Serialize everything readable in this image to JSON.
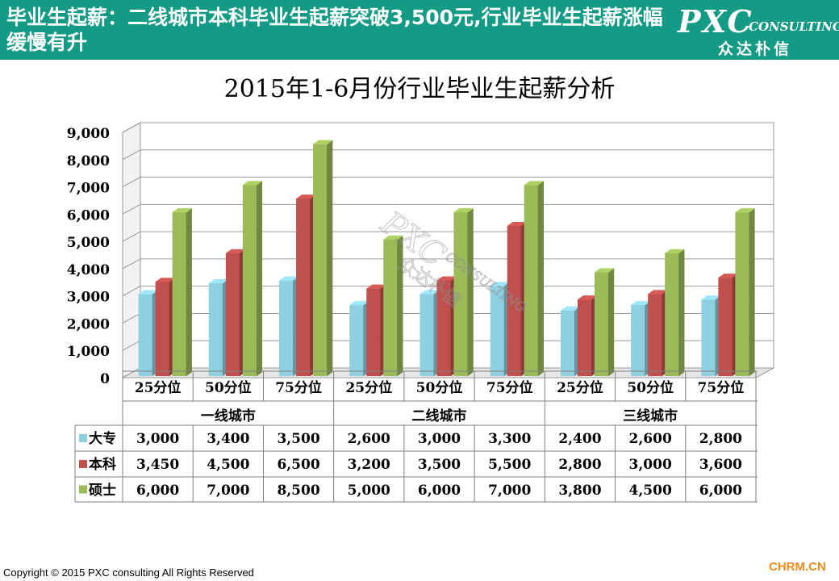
{
  "header": {
    "title": "毕业生起薪：二线城市本科毕业生起薪突破3,500元,行业毕业生起薪涨幅缓慢有升",
    "logo_main": "PXC",
    "logo_sub": "CONSULTING",
    "logo_cn": "众达朴信",
    "color": "#139b85"
  },
  "watermark": {
    "main": "PXC",
    "sub": "CONSULTING",
    "cn": "众达朴信"
  },
  "footer": {
    "copyright": "Copyright © 2015  PXC consulting All Rights Reserved",
    "site": "CHRM.CN"
  },
  "chart_data": {
    "type": "bar",
    "title": "2015年1-6月份行业毕业生起薪分析",
    "ylim": [
      0,
      9000
    ],
    "yticks": [
      "0",
      "1,000",
      "2,000",
      "3,000",
      "4,000",
      "5,000",
      "6,000",
      "7,000",
      "8,000",
      "9,000"
    ],
    "grid": true,
    "groups": [
      "一线城市",
      "二线城市",
      "三线城市"
    ],
    "categories": [
      "25分位",
      "50分位",
      "75分位",
      "25分位",
      "50分位",
      "75分位",
      "25分位",
      "50分位",
      "75分位"
    ],
    "series": [
      {
        "name": "大专",
        "color": "#8ecfe0",
        "values": [
          3000,
          3400,
          3500,
          2600,
          3000,
          3300,
          2400,
          2600,
          2800
        ],
        "labels": [
          "3,000",
          "3,400",
          "3,500",
          "2,600",
          "3,000",
          "3,300",
          "2,400",
          "2,600",
          "2,800"
        ]
      },
      {
        "name": "本科",
        "color": "#c0504d",
        "values": [
          3450,
          4500,
          6500,
          3200,
          3500,
          5500,
          2800,
          3000,
          3600
        ],
        "labels": [
          "3,450",
          "4,500",
          "6,500",
          "3,200",
          "3,500",
          "5,500",
          "2,800",
          "3,000",
          "3,600"
        ]
      },
      {
        "name": "硕士",
        "color": "#9bbb59",
        "values": [
          6000,
          7000,
          8500,
          5000,
          6000,
          7000,
          3800,
          4500,
          6000
        ],
        "labels": [
          "6,000",
          "7,000",
          "8,500",
          "5,000",
          "6,000",
          "7,000",
          "3,800",
          "4,500",
          "6,000"
        ]
      }
    ],
    "legend_placement": "data-table-left"
  }
}
